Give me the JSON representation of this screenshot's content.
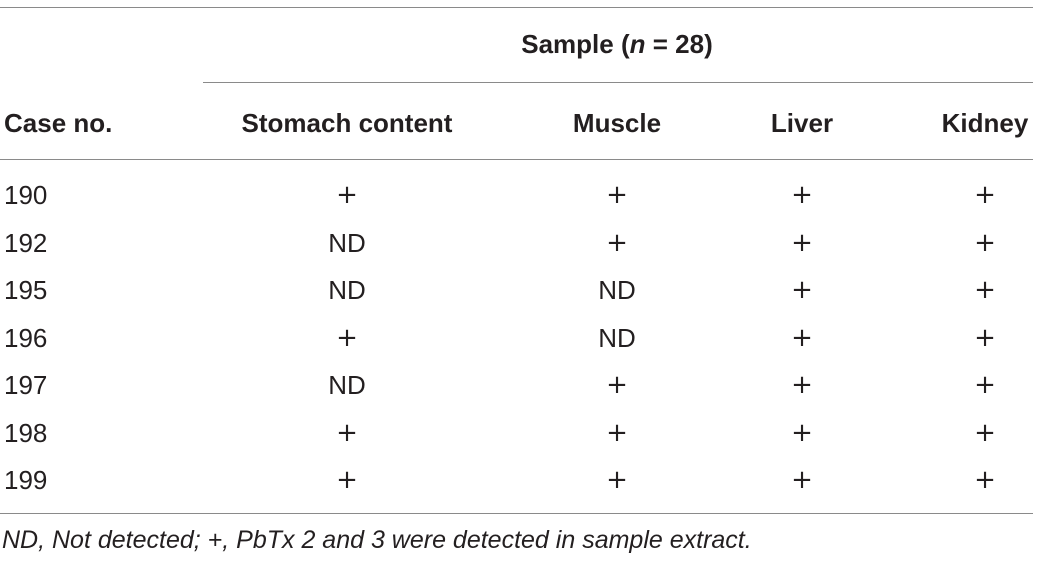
{
  "table": {
    "group_header_prefix": "Sample (",
    "group_header_n": "n",
    "group_header_suffix": " = 28)",
    "columns": [
      "Case no.",
      "Stomach content",
      "Muscle",
      "Liver",
      "Kidney"
    ],
    "rows": [
      [
        "190",
        "+",
        "+",
        "+",
        "+"
      ],
      [
        "192",
        "ND",
        "+",
        "+",
        "+"
      ],
      [
        "195",
        "ND",
        "ND",
        "+",
        "+"
      ],
      [
        "196",
        "+",
        "ND",
        "+",
        "+"
      ],
      [
        "197",
        "ND",
        "+",
        "+",
        "+"
      ],
      [
        "198",
        "+",
        "+",
        "+",
        "+"
      ],
      [
        "199",
        "+",
        "+",
        "+",
        "+"
      ]
    ],
    "footnote": "ND, Not detected; +, PbTx 2 and 3 were detected in sample extract."
  }
}
